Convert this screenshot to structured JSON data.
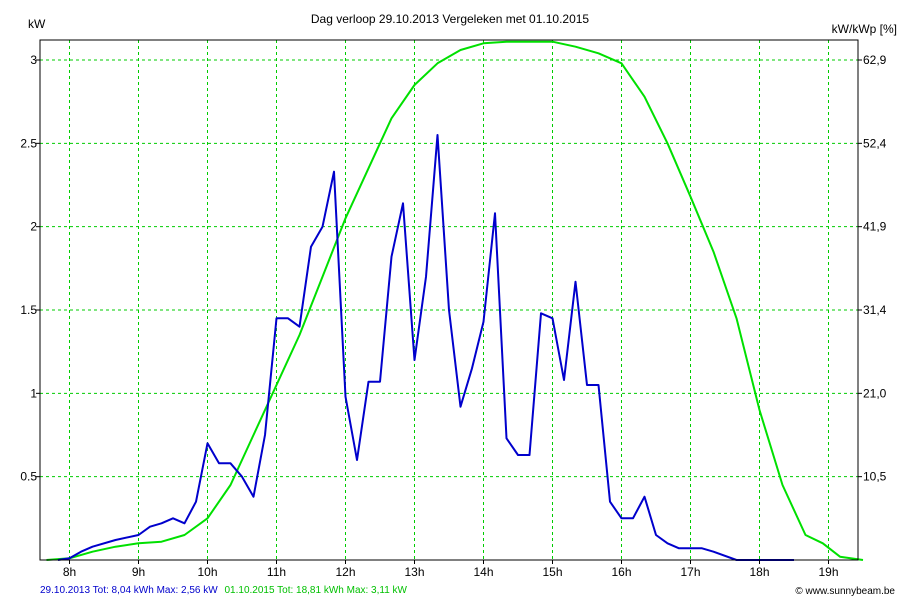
{
  "chart_data": {
    "type": "line",
    "title": "Dag  verloop 29.10.2013   Vergeleken met 01.10.2015",
    "ylabel_left": "kW",
    "ylabel_right": "kW/kWp [%]",
    "ylim": [
      0,
      3.12
    ],
    "x_tick_labels": [
      "8h",
      "9h",
      "10h",
      "11h",
      "12h",
      "13h",
      "14h",
      "15h",
      "16h",
      "17h",
      "18h",
      "19h"
    ],
    "x_ticks_hours": [
      8,
      9,
      10,
      11,
      12,
      13,
      14,
      15,
      16,
      17,
      18,
      19
    ],
    "y_ticks_left": [
      {
        "value": 0.5,
        "label": "0.5"
      },
      {
        "value": 1,
        "label": "1"
      },
      {
        "value": 1.5,
        "label": "1.5"
      },
      {
        "value": 2,
        "label": "2"
      },
      {
        "value": 2.5,
        "label": "2.5"
      },
      {
        "value": 3,
        "label": "3"
      }
    ],
    "y_ticks_right": [
      {
        "value": 0.5,
        "label": "10,5"
      },
      {
        "value": 1,
        "label": "21,0"
      },
      {
        "value": 1.5,
        "label": "31,4"
      },
      {
        "value": 2,
        "label": "41,9"
      },
      {
        "value": 2.5,
        "label": "52,4"
      },
      {
        "value": 3,
        "label": "62,9"
      }
    ],
    "grid": true,
    "series": [
      {
        "color": "#00e000",
        "points": [
          [
            "7:40",
            0
          ],
          [
            "8:00",
            0.01
          ],
          [
            "8:20",
            0.05
          ],
          [
            "8:40",
            0.08
          ],
          [
            "9:00",
            0.1
          ],
          [
            "9:20",
            0.11
          ],
          [
            "9:40",
            0.15
          ],
          [
            "10:00",
            0.25
          ],
          [
            "10:20",
            0.45
          ],
          [
            "10:40",
            0.75
          ],
          [
            "11:00",
            1.05
          ],
          [
            "11:20",
            1.35
          ],
          [
            "11:40",
            1.7
          ],
          [
            "12:00",
            2.05
          ],
          [
            "12:20",
            2.35
          ],
          [
            "12:40",
            2.65
          ],
          [
            "13:00",
            2.85
          ],
          [
            "13:20",
            2.98
          ],
          [
            "13:40",
            3.06
          ],
          [
            "14:00",
            3.1
          ],
          [
            "14:20",
            3.11
          ],
          [
            "14:40",
            3.11
          ],
          [
            "15:00",
            3.11
          ],
          [
            "15:20",
            3.08
          ],
          [
            "15:40",
            3.04
          ],
          [
            "16:00",
            2.98
          ],
          [
            "16:20",
            2.78
          ],
          [
            "16:40",
            2.5
          ],
          [
            "17:00",
            2.18
          ],
          [
            "17:20",
            1.85
          ],
          [
            "17:40",
            1.45
          ],
          [
            "18:00",
            0.9
          ],
          [
            "18:20",
            0.45
          ],
          [
            "18:40",
            0.15
          ],
          [
            "18:55",
            0.1
          ],
          [
            "19:10",
            0.02
          ],
          [
            "19:30",
            0
          ]
        ]
      },
      {
        "color": "#0000cc",
        "points": [
          [
            "7:50",
            0
          ],
          [
            "8:00",
            0.01
          ],
          [
            "8:10",
            0.05
          ],
          [
            "8:20",
            0.08
          ],
          [
            "8:40",
            0.12
          ],
          [
            "9:00",
            0.15
          ],
          [
            "9:10",
            0.2
          ],
          [
            "9:20",
            0.22
          ],
          [
            "9:30",
            0.25
          ],
          [
            "9:40",
            0.22
          ],
          [
            "9:50",
            0.35
          ],
          [
            "10:00",
            0.7
          ],
          [
            "10:10",
            0.58
          ],
          [
            "10:20",
            0.58
          ],
          [
            "10:30",
            0.5
          ],
          [
            "10:40",
            0.38
          ],
          [
            "10:50",
            0.75
          ],
          [
            "11:00",
            1.45
          ],
          [
            "11:10",
            1.45
          ],
          [
            "11:20",
            1.4
          ],
          [
            "11:30",
            1.88
          ],
          [
            "11:40",
            2.0
          ],
          [
            "11:50",
            2.33
          ],
          [
            "12:00",
            0.98
          ],
          [
            "12:10",
            0.6
          ],
          [
            "12:20",
            1.07
          ],
          [
            "12:30",
            1.07
          ],
          [
            "12:40",
            1.82
          ],
          [
            "12:50",
            2.14
          ],
          [
            "13:00",
            1.2
          ],
          [
            "13:10",
            1.7
          ],
          [
            "13:20",
            2.55
          ],
          [
            "13:30",
            1.5
          ],
          [
            "13:40",
            0.92
          ],
          [
            "13:50",
            1.15
          ],
          [
            "14:00",
            1.43
          ],
          [
            "14:10",
            2.08
          ],
          [
            "14:20",
            0.73
          ],
          [
            "14:30",
            0.63
          ],
          [
            "14:40",
            0.63
          ],
          [
            "14:50",
            1.48
          ],
          [
            "15:00",
            1.45
          ],
          [
            "15:10",
            1.08
          ],
          [
            "15:20",
            1.67
          ],
          [
            "15:30",
            1.05
          ],
          [
            "15:40",
            1.05
          ],
          [
            "15:50",
            0.35
          ],
          [
            "16:00",
            0.25
          ],
          [
            "16:10",
            0.25
          ],
          [
            "16:20",
            0.38
          ],
          [
            "16:30",
            0.15
          ],
          [
            "16:40",
            0.1
          ],
          [
            "16:50",
            0.07
          ],
          [
            "17:00",
            0.07
          ],
          [
            "17:10",
            0.07
          ],
          [
            "17:20",
            0.05
          ],
          [
            "17:40",
            0
          ],
          [
            "18:30",
            0
          ]
        ]
      }
    ]
  },
  "footer": {
    "series1_text": "29.10.2013 Tot: 8,04 kWh Max: 2,56 kW",
    "series1_color": "#0000cc",
    "series2_text": "01.10.2015 Tot: 18,81 kWh Max: 3,11 kW",
    "series2_color": "#00c000",
    "credit": "© www.sunnybeam.be"
  }
}
